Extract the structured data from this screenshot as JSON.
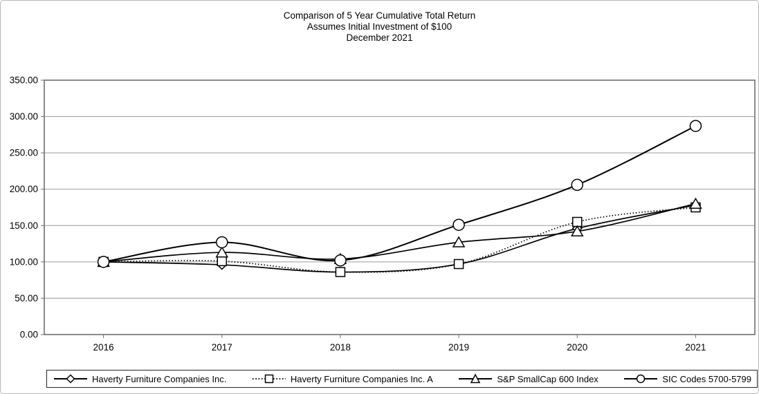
{
  "chart_data": {
    "type": "line",
    "title": "Comparison of 5 Year Cumulative Total Return",
    "subtitle": "Assumes Initial Investment of $100",
    "period": "December 2021",
    "categories": [
      "2016",
      "2017",
      "2018",
      "2019",
      "2020",
      "2021"
    ],
    "series": [
      {
        "name": "Haverty Furniture Companies Inc.",
        "marker": "diamond",
        "line_style": "solid",
        "values": [
          100,
          96,
          86,
          97,
          146,
          178
        ]
      },
      {
        "name": "Haverty Furniture Companies Inc. A",
        "marker": "square",
        "line_style": "dotted",
        "values": [
          100,
          101,
          86,
          97,
          155,
          175
        ]
      },
      {
        "name": "S&P SmallCap 600 Index",
        "marker": "triangle",
        "line_style": "solid",
        "values": [
          100,
          113,
          104,
          127,
          142,
          180
        ]
      },
      {
        "name": "SIC Codes 5700-5799",
        "marker": "circle",
        "line_style": "solid",
        "values": [
          100,
          127,
          102,
          151,
          206,
          287
        ]
      }
    ],
    "ylim": [
      0,
      350
    ],
    "y_tick_step": 50,
    "y_tick_labels": [
      "0.00",
      "50.00",
      "100.00",
      "150.00",
      "200.00",
      "250.00",
      "300.00",
      "350.00"
    ],
    "x_tick_labels": [
      "2016",
      "2017",
      "2018",
      "2019",
      "2020",
      "2021"
    ],
    "grid": "horizontal",
    "legend_position": "bottom",
    "colors": {
      "line": "#000000",
      "marker_fill": "#ffffff",
      "grid": "#9a9a9a",
      "axis": "#6e6e6e",
      "text": "#000000",
      "legend_border": "#222222",
      "background": "#ffffff"
    }
  }
}
